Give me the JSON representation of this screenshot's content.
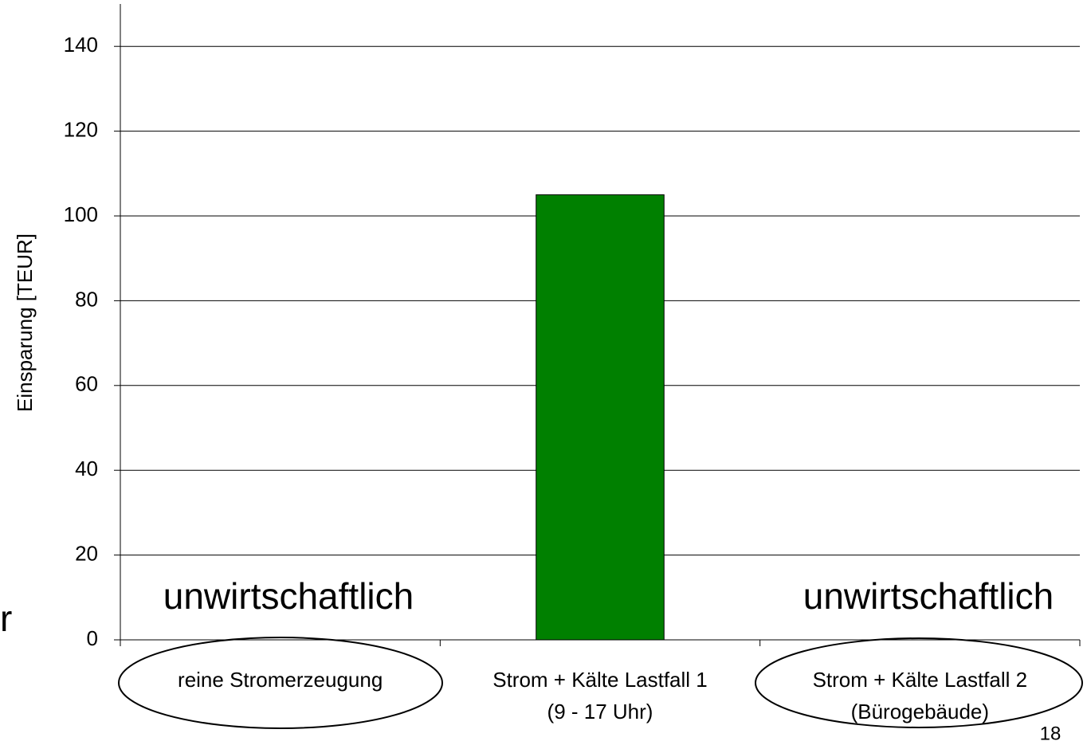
{
  "chart_data": {
    "type": "bar",
    "y_label": "Einsparung [TEUR]",
    "categories": [
      "reine Stromerzeugung",
      "Strom + Kälte Lastfall 1\n(9 - 17 Uhr)",
      "Strom + Kälte Lastfall 2\n(Bürogebäude)"
    ],
    "values": [
      null,
      105,
      null
    ],
    "color": "#008000",
    "ylim": [
      0,
      150
    ],
    "yticks": [
      0,
      20,
      40,
      60,
      80,
      100,
      120,
      140
    ],
    "grid": true,
    "annotations": [
      "unwirtschaftlich",
      "unwirtschaftlich",
      "r",
      "18"
    ]
  }
}
